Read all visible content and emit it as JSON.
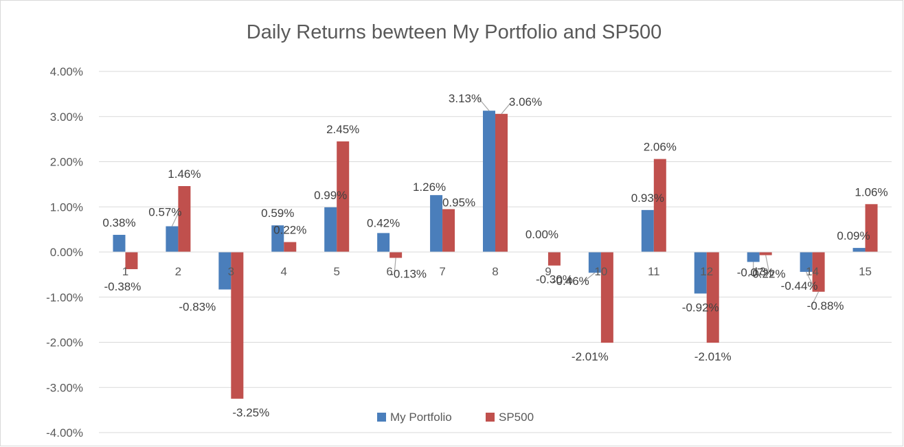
{
  "chart_data": {
    "type": "bar",
    "title": "Daily Returns bewteen My Portfolio and SP500",
    "xlabel": "",
    "ylabel": "",
    "categories": [
      "1",
      "2",
      "3",
      "4",
      "5",
      "6",
      "7",
      "8",
      "9",
      "10",
      "11",
      "12",
      "13",
      "14",
      "15"
    ],
    "ylim": [
      -0.04,
      0.04
    ],
    "yticks": [
      -0.04,
      -0.03,
      -0.02,
      -0.01,
      0,
      0.01,
      0.02,
      0.03,
      0.04
    ],
    "ytick_labels": [
      "-4.00%",
      "-3.00%",
      "-2.00%",
      "-1.00%",
      "0.00%",
      "1.00%",
      "2.00%",
      "3.00%",
      "4.00%"
    ],
    "grid": true,
    "legend_position": "bottom",
    "series": [
      {
        "name": "My Portfolio",
        "color": "#4a7ebb",
        "values": [
          0.0038,
          0.0057,
          -0.0083,
          0.0059,
          0.0099,
          0.0042,
          0.0126,
          0.0313,
          0.0,
          -0.0046,
          0.0093,
          -0.0092,
          -0.0022,
          -0.0044,
          0.0009
        ],
        "labels": [
          "0.38%",
          "0.57%",
          "-0.83%",
          "0.59%",
          "0.99%",
          "0.42%",
          "1.26%",
          "3.13%",
          "0.00%",
          "-0.46%",
          "0.93%",
          "-0.92%",
          "-0.22%",
          "-0.44%",
          "0.09%"
        ]
      },
      {
        "name": "SP500",
        "color": "#c0504d",
        "values": [
          -0.0038,
          0.0146,
          -0.0325,
          0.0022,
          0.0245,
          -0.0013,
          0.0095,
          0.0306,
          -0.003,
          -0.0201,
          0.0206,
          -0.0201,
          -0.0007,
          -0.0088,
          0.0106
        ],
        "labels": [
          "-0.38%",
          "1.46%",
          "-3.25%",
          "0.22%",
          "2.45%",
          "-0.13%",
          "0.95%",
          "3.06%",
          "-0.30%",
          "-2.01%",
          "2.06%",
          "-2.01%",
          "-0.07%",
          "-0.88%",
          "1.06%"
        ]
      }
    ]
  }
}
